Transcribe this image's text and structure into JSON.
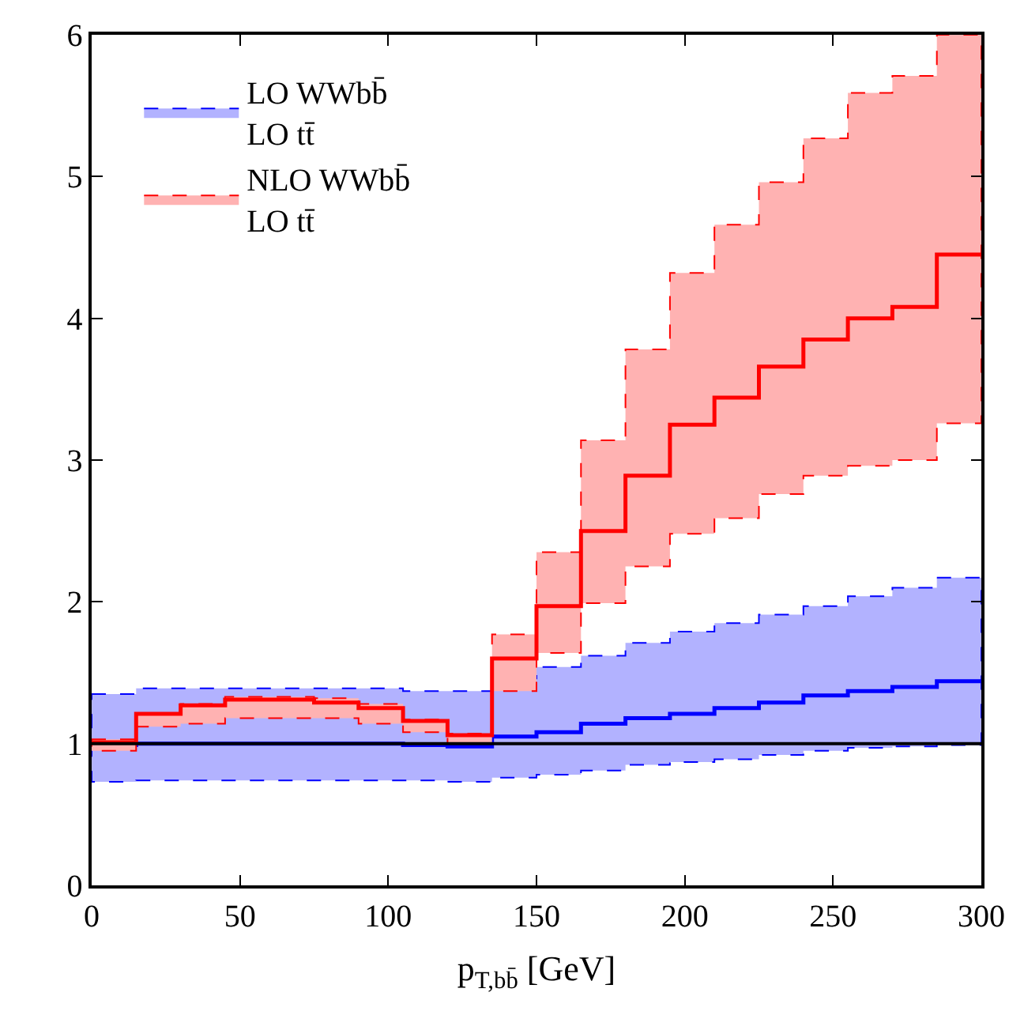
{
  "chart_data": {
    "type": "step",
    "xlabel": "p$_{T,bb̄}$ [GeV]",
    "x": [
      0,
      15,
      30,
      45,
      60,
      75,
      90,
      105,
      120,
      135,
      150,
      165,
      180,
      195,
      210,
      225,
      240,
      255,
      270,
      285,
      300
    ],
    "series": [
      {
        "name": "LO WWbb̄\nLO tt̄",
        "color": "#0000ff",
        "values": [
          0.99,
          1.0,
          1.0,
          1.0,
          1.0,
          1.0,
          1.0,
          0.99,
          0.98,
          1.05,
          1.08,
          1.14,
          1.18,
          1.21,
          1.25,
          1.29,
          1.34,
          1.37,
          1.4,
          1.44,
          1.44
        ],
        "lower": [
          0.73,
          0.74,
          0.74,
          0.74,
          0.74,
          0.74,
          0.74,
          0.74,
          0.73,
          0.76,
          0.78,
          0.81,
          0.85,
          0.87,
          0.89,
          0.92,
          0.95,
          0.97,
          0.98,
          0.99,
          0.99
        ],
        "upper": [
          1.35,
          1.39,
          1.39,
          1.39,
          1.39,
          1.39,
          1.39,
          1.37,
          1.37,
          1.46,
          1.54,
          1.62,
          1.71,
          1.79,
          1.85,
          1.91,
          1.97,
          2.04,
          2.1,
          2.17,
          2.17
        ]
      },
      {
        "name": "NLO WWbb̄\nLO tt̄",
        "color": "#ff0000",
        "values": [
          1.01,
          1.21,
          1.27,
          1.31,
          1.31,
          1.29,
          1.25,
          1.16,
          1.06,
          1.6,
          1.97,
          2.5,
          2.89,
          3.25,
          3.44,
          3.66,
          3.85,
          4.0,
          4.08,
          4.45,
          4.45
        ],
        "lower": [
          0.95,
          1.12,
          1.14,
          1.18,
          1.18,
          1.18,
          1.14,
          1.08,
          1.0,
          1.37,
          1.64,
          1.99,
          2.25,
          2.48,
          2.59,
          2.76,
          2.89,
          2.96,
          3.0,
          3.26,
          3.26
        ],
        "upper": [
          1.03,
          1.21,
          1.28,
          1.33,
          1.33,
          1.32,
          1.28,
          1.17,
          1.07,
          1.77,
          2.35,
          3.14,
          3.78,
          4.32,
          4.66,
          4.96,
          5.27,
          5.59,
          5.71,
          6.0,
          6.0
        ]
      }
    ],
    "xlim": [
      0,
      300
    ],
    "xticks": [
      0,
      50,
      100,
      150,
      200,
      250,
      300
    ],
    "ylim": [
      0,
      6
    ],
    "yticks": [
      0,
      1,
      2,
      3,
      4,
      5,
      6
    ],
    "ref_lines": [
      {
        "axis": "y",
        "value": 1,
        "color": "#000000"
      }
    ],
    "legend": "top left",
    "line_style": "solid"
  }
}
